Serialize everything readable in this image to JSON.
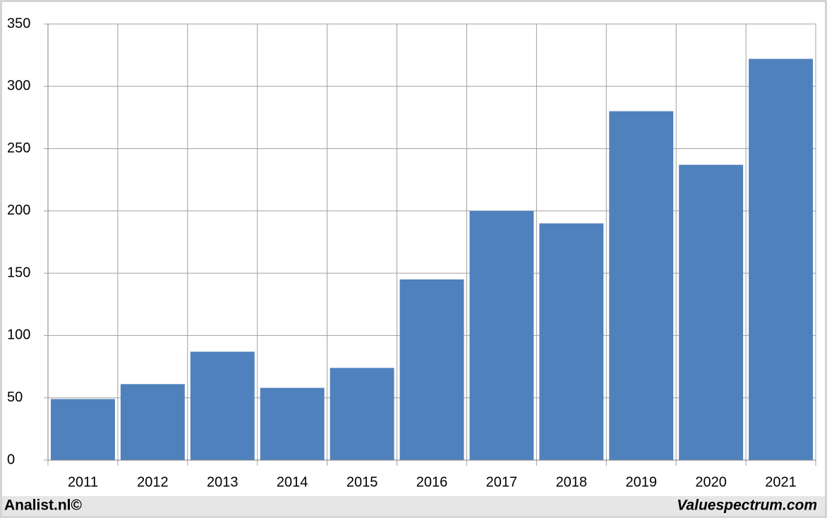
{
  "chart_data": {
    "type": "bar",
    "categories": [
      "2011",
      "2012",
      "2013",
      "2014",
      "2015",
      "2016",
      "2017",
      "2018",
      "2019",
      "2020",
      "2021"
    ],
    "values": [
      49,
      61,
      87,
      58,
      74,
      145,
      200,
      190,
      280,
      237,
      322
    ],
    "color": "#4f81bd",
    "ylim": [
      0,
      350
    ],
    "yticks": [
      0,
      50,
      100,
      150,
      200,
      250,
      300,
      350
    ],
    "grid": true,
    "annotations": [
      "Analist.nl©",
      "Valuespectrum.com"
    ]
  }
}
